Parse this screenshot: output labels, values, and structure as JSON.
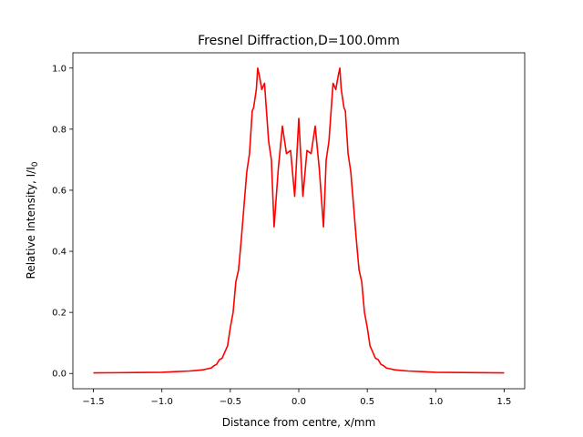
{
  "chart_data": {
    "type": "line",
    "title": "Fresnel Diffraction,D=100.0mm",
    "xlabel": "Distance from centre, x/mm",
    "ylabel": "Relative Intensity, I/I",
    "ylabel_subscript": "0",
    "xlim": [
      -1.65,
      1.65
    ],
    "ylim": [
      -0.05,
      1.05
    ],
    "xticks": [
      -1.5,
      -1.0,
      -0.5,
      0.0,
      0.5,
      1.0,
      1.5
    ],
    "xtick_labels": [
      "−1.5",
      "−1.0",
      "−0.5",
      "0.0",
      "0.5",
      "1.0",
      "1.5"
    ],
    "yticks": [
      0.0,
      0.2,
      0.4,
      0.6,
      0.8,
      1.0
    ],
    "ytick_labels": [
      "0.0",
      "0.2",
      "0.4",
      "0.6",
      "0.8",
      "1.0"
    ],
    "grid": false,
    "color": "#ff0000",
    "series": [
      {
        "x": [
          0.0,
          0.03,
          0.06,
          0.09,
          0.12,
          0.15,
          0.18,
          0.2,
          0.22,
          0.25,
          0.27,
          0.29,
          0.3,
          0.31,
          0.33,
          0.34,
          0.36,
          0.38,
          0.4,
          0.42,
          0.44,
          0.46,
          0.48,
          0.5,
          0.52,
          0.54,
          0.56,
          0.58,
          0.6,
          0.62,
          0.64,
          0.66,
          0.7,
          0.75,
          0.8,
          0.9,
          1.0,
          1.2,
          1.5
        ],
        "y": [
          0.835,
          0.58,
          0.73,
          0.72,
          0.81,
          0.67,
          0.48,
          0.7,
          0.76,
          0.95,
          0.93,
          0.98,
          1.0,
          0.93,
          0.87,
          0.86,
          0.72,
          0.66,
          0.55,
          0.44,
          0.34,
          0.3,
          0.2,
          0.15,
          0.09,
          0.07,
          0.05,
          0.045,
          0.03,
          0.025,
          0.018,
          0.016,
          0.012,
          0.01,
          0.008,
          0.006,
          0.004,
          0.003,
          0.002
        ]
      }
    ]
  }
}
